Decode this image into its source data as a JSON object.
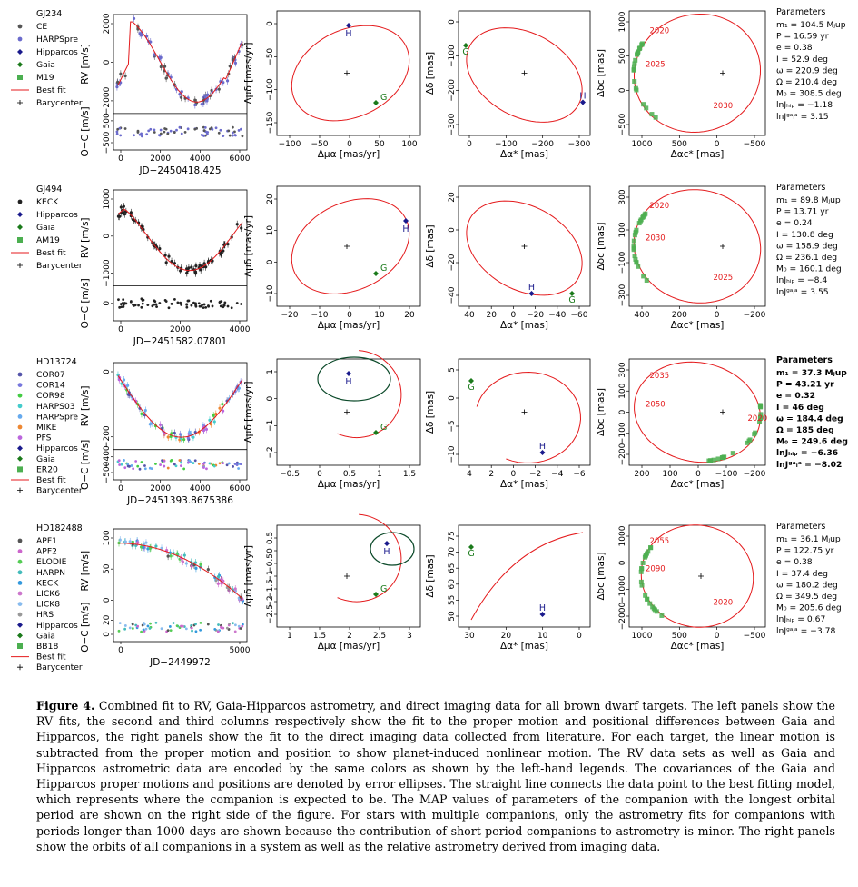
{
  "caption": {
    "label": "Figure 4.",
    "text": "Combined fit to RV, Gaia-Hipparcos astrometry, and direct imaging data for all brown dwarf targets. The left panels show the RV fits, the second and third columns respectively show the fit to the proper motion and positional differences between Gaia and Hipparcos, the right panels show the fit to the direct imaging data collected from literature. For each target, the linear motion is subtracted from the proper motion and position to show planet-induced nonlinear motion. The RV data sets as well as Gaia and Hipparcos astrometric data are encoded by the same colors as shown by the left-hand legends. The covariances of the Gaia and Hipparcos proper motions and positions are denoted by error ellipses. The straight line connects the data point to the best fitting model, which represents where the companion is expected to be. The MAP values of parameters of the companion with the longest orbital period are shown on the right side of the figure. For stars with multiple companions, only the astrometry fits for companions with periods longer than 1000 days are shown because the contribution of short-period companions to astrometry is minor. The right panels show the orbits of all companions in a system as well as the relative astrometry derived from imaging data."
  },
  "labels": {
    "rv": "RV [m/s]",
    "oc": "O−C [m/s]",
    "pm_x": "Δμα [mas/yr]",
    "pm_y": "Δμδ [mas/yr]",
    "pos_x": "Δα* [mas]",
    "pos_y": "Δδ [mas]",
    "img_x": "Δαc* [mas]",
    "img_y": "Δδc [mas]",
    "params_title": "Parameters",
    "best_fit": "Best fit",
    "barycenter": "Barycenter",
    "H": "H",
    "G": "G"
  },
  "colors": {
    "fit": "#e41a1c",
    "gaia": "#1b7a1b",
    "hip": "#1a1a8c",
    "ellipse": "#0c4a2a",
    "M19": "#4caf50"
  },
  "rows": [
    {
      "star": "GJ234",
      "jd_label": "JD−2450418.425",
      "legend": [
        {
          "name": "CE",
          "color": "#555555",
          "sym": "dot"
        },
        {
          "name": "HARPSpre",
          "color": "#6b6bcc",
          "sym": "dot"
        },
        {
          "name": "Hipparcos",
          "color": "#1a1a8c",
          "sym": "diamond"
        },
        {
          "name": "Gaia",
          "color": "#1b7a1b",
          "sym": "diamond"
        },
        {
          "name": "M19",
          "color": "#4caf50",
          "sym": "square"
        }
      ],
      "rv_ticks_y": [
        "2000",
        "0",
        "−2000"
      ],
      "oc_ticks_y": [
        "500",
        "−500"
      ],
      "rv_ticks_x": [
        "0",
        "2000",
        "4000",
        "6000"
      ],
      "pm_ticks_x": [
        "−100",
        "−50",
        "0",
        "50",
        "100"
      ],
      "pm_ticks_y": [
        "−150",
        "−100",
        "−50",
        "0"
      ],
      "pos_ticks_x": [
        "0",
        "−100",
        "−200",
        "−300"
      ],
      "pos_ticks_y": [
        "−300",
        "−200",
        "−100",
        "0"
      ],
      "img_ticks_x": [
        "1000",
        "500",
        "0",
        "−500"
      ],
      "img_ticks_y": [
        "1000",
        "500",
        "0",
        "−500"
      ],
      "years": [
        "2020",
        "2025",
        "2030"
      ],
      "params": [
        "m₁ = 104.5 Mⱼup",
        "P = 16.59 yr",
        "e = 0.38",
        "I = 52.9 deg",
        "ω = 220.9 deg",
        "Ω = 210.4 deg",
        "M₀ = 308.5 deg",
        "lnJₕᵢₚ = −1.18",
        "lnJᵍᵃᵢᵃ = 3.15"
      ],
      "params_bold": false
    },
    {
      "star": "GJ494",
      "jd_label": "JD−2451582.07801",
      "legend": [
        {
          "name": "KECK",
          "color": "#222222",
          "sym": "dot"
        },
        {
          "name": "Hipparcos",
          "color": "#1a1a8c",
          "sym": "diamond"
        },
        {
          "name": "Gaia",
          "color": "#1b7a1b",
          "sym": "diamond"
        },
        {
          "name": "AM19",
          "color": "#4caf50",
          "sym": "square"
        }
      ],
      "rv_ticks_y": [
        "1000",
        "0",
        "−1000"
      ],
      "oc_ticks_y": [
        "0"
      ],
      "rv_ticks_x": [
        "0",
        "2000",
        "4000"
      ],
      "pm_ticks_x": [
        "−20",
        "−10",
        "0",
        "10",
        "20"
      ],
      "pm_ticks_y": [
        "−10",
        "0",
        "10",
        "20"
      ],
      "pos_ticks_x": [
        "40",
        "20",
        "0",
        "−20",
        "−40",
        "−60"
      ],
      "pos_ticks_y": [
        "−40",
        "−20",
        "0",
        "20"
      ],
      "img_ticks_x": [
        "400",
        "200",
        "0",
        "−200"
      ],
      "img_ticks_y": [
        "300",
        "100",
        "−100",
        "−300"
      ],
      "years": [
        "2020",
        "2030",
        "2025"
      ],
      "params": [
        "m₁ = 89.8 Mⱼup",
        "P = 13.71 yr",
        "e = 0.24",
        "I = 130.8 deg",
        "ω = 158.9 deg",
        "Ω = 236.1 deg",
        "M₀ = 160.1 deg",
        "lnJₕᵢₚ = −8.4",
        "lnJᵍᵃᵢᵃ = 3.55"
      ],
      "params_bold": false
    },
    {
      "star": "HD13724",
      "jd_label": "JD−2451393.8675386",
      "legend": [
        {
          "name": "COR07",
          "color": "#5555aa",
          "sym": "dot"
        },
        {
          "name": "COR14",
          "color": "#7777dd",
          "sym": "dot"
        },
        {
          "name": "COR98",
          "color": "#44cc44",
          "sym": "dot"
        },
        {
          "name": "HARPS03",
          "color": "#44cccc",
          "sym": "dot"
        },
        {
          "name": "HARPSpre",
          "color": "#66aaee",
          "sym": "dot"
        },
        {
          "name": "MIKE",
          "color": "#ee8833",
          "sym": "dot"
        },
        {
          "name": "PFS",
          "color": "#bb66dd",
          "sym": "dot"
        },
        {
          "name": "Hipparcos",
          "color": "#1a1a8c",
          "sym": "diamond"
        },
        {
          "name": "Gaia",
          "color": "#1b7a1b",
          "sym": "diamond"
        },
        {
          "name": "ER20",
          "color": "#4caf50",
          "sym": "square"
        }
      ],
      "rv_ticks_y": [
        "0",
        "−200"
      ],
      "oc_ticks_y": [
        "−400",
        "−500"
      ],
      "rv_ticks_x": [
        "0",
        "2000",
        "4000",
        "6000"
      ],
      "pm_ticks_x": [
        "−0.5",
        "0",
        "0.5",
        "1",
        "1.5"
      ],
      "pm_ticks_y": [
        "−2",
        "−1",
        "0",
        "1"
      ],
      "pos_ticks_x": [
        "4",
        "2",
        "0",
        "−2",
        "−4",
        "−6"
      ],
      "pos_ticks_y": [
        "−10",
        "−5",
        "0",
        "5"
      ],
      "img_ticks_x": [
        "200",
        "100",
        "0",
        "−100",
        "−200"
      ],
      "img_ticks_y": [
        "300",
        "100",
        "0",
        "−100",
        "−200"
      ],
      "years": [
        "2035",
        "2050",
        "2020"
      ],
      "params": [
        "m₁ = 37.3 Mⱼup",
        "P = 43.21 yr",
        "e = 0.32",
        "I = 46 deg",
        "ω = 184.4 deg",
        "Ω = 185 deg",
        "M₀ = 249.6 deg",
        "lnJₕᵢₚ = −6.36",
        "lnJᵍᵃᵢᵃ = −8.02"
      ],
      "params_bold": true
    },
    {
      "star": "HD182488",
      "jd_label": "JD−2449972",
      "legend": [
        {
          "name": "APF1",
          "color": "#555555",
          "sym": "dot"
        },
        {
          "name": "APF2",
          "color": "#cc66cc",
          "sym": "dot"
        },
        {
          "name": "ELODIE",
          "color": "#55cc55",
          "sym": "dot"
        },
        {
          "name": "HARPN",
          "color": "#44bbbb",
          "sym": "dot"
        },
        {
          "name": "KECK",
          "color": "#3399dd",
          "sym": "dot"
        },
        {
          "name": "LICK6",
          "color": "#cc77cc",
          "sym": "dot"
        },
        {
          "name": "LICK8",
          "color": "#88bbee",
          "sym": "dot"
        },
        {
          "name": "HRS",
          "color": "#999999",
          "sym": "dot"
        },
        {
          "name": "Hipparcos",
          "color": "#1a1a8c",
          "sym": "diamond"
        },
        {
          "name": "Gaia",
          "color": "#1b7a1b",
          "sym": "diamond"
        },
        {
          "name": "BB18",
          "color": "#4caf50",
          "sym": "square"
        }
      ],
      "rv_ticks_y": [
        "100",
        "50",
        "0"
      ],
      "oc_ticks_y": [
        "20",
        "0"
      ],
      "rv_ticks_x": [
        "0",
        "5000"
      ],
      "pm_ticks_x": [
        "1",
        "1.5",
        "2",
        "2.5",
        "3"
      ],
      "pm_ticks_y": [
        "−2.5",
        "−2",
        "−1.5",
        "−1",
        "−0.5",
        "0",
        "0.5"
      ],
      "pos_ticks_x": [
        "30",
        "20",
        "10",
        "0"
      ],
      "pos_ticks_y": [
        "50",
        "55",
        "60",
        "65",
        "70",
        "75"
      ],
      "img_ticks_x": [
        "1000",
        "500",
        "0",
        "−500"
      ],
      "img_ticks_y": [
        "1000",
        "0",
        "−1000",
        "−2000"
      ],
      "years": [
        "2055",
        "2090",
        "2020"
      ],
      "params": [
        "m₁ = 36.1 Mⱼup",
        "P = 122.75 yr",
        "e = 0.38",
        "I = 37.4 deg",
        "ω = 180.2 deg",
        "Ω = 349.5 deg",
        "M₀ = 205.6 deg",
        "lnJₕᵢₚ = 0.67",
        "lnJᵍᵃᵢᵃ = −3.78"
      ],
      "params_bold": false
    }
  ]
}
